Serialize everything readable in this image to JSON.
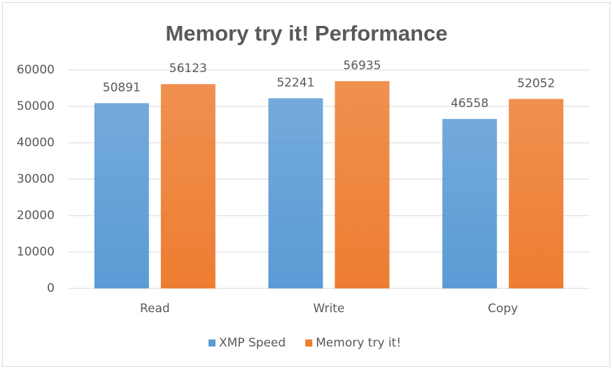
{
  "chart_data": {
    "type": "bar",
    "title": "Memory try it! Performance",
    "categories": [
      "Read",
      "Write",
      "Copy"
    ],
    "series": [
      {
        "name": "XMP Speed",
        "color": "#5b9bd5",
        "values": [
          50891,
          52241,
          46558
        ]
      },
      {
        "name": "Memory try it!",
        "color": "#ed7d31",
        "values": [
          56123,
          56935,
          52052
        ]
      }
    ],
    "ylim": [
      0,
      60000
    ],
    "yticks": [
      0,
      10000,
      20000,
      30000,
      40000,
      50000,
      60000
    ],
    "grid": true,
    "legend": "bottom"
  }
}
